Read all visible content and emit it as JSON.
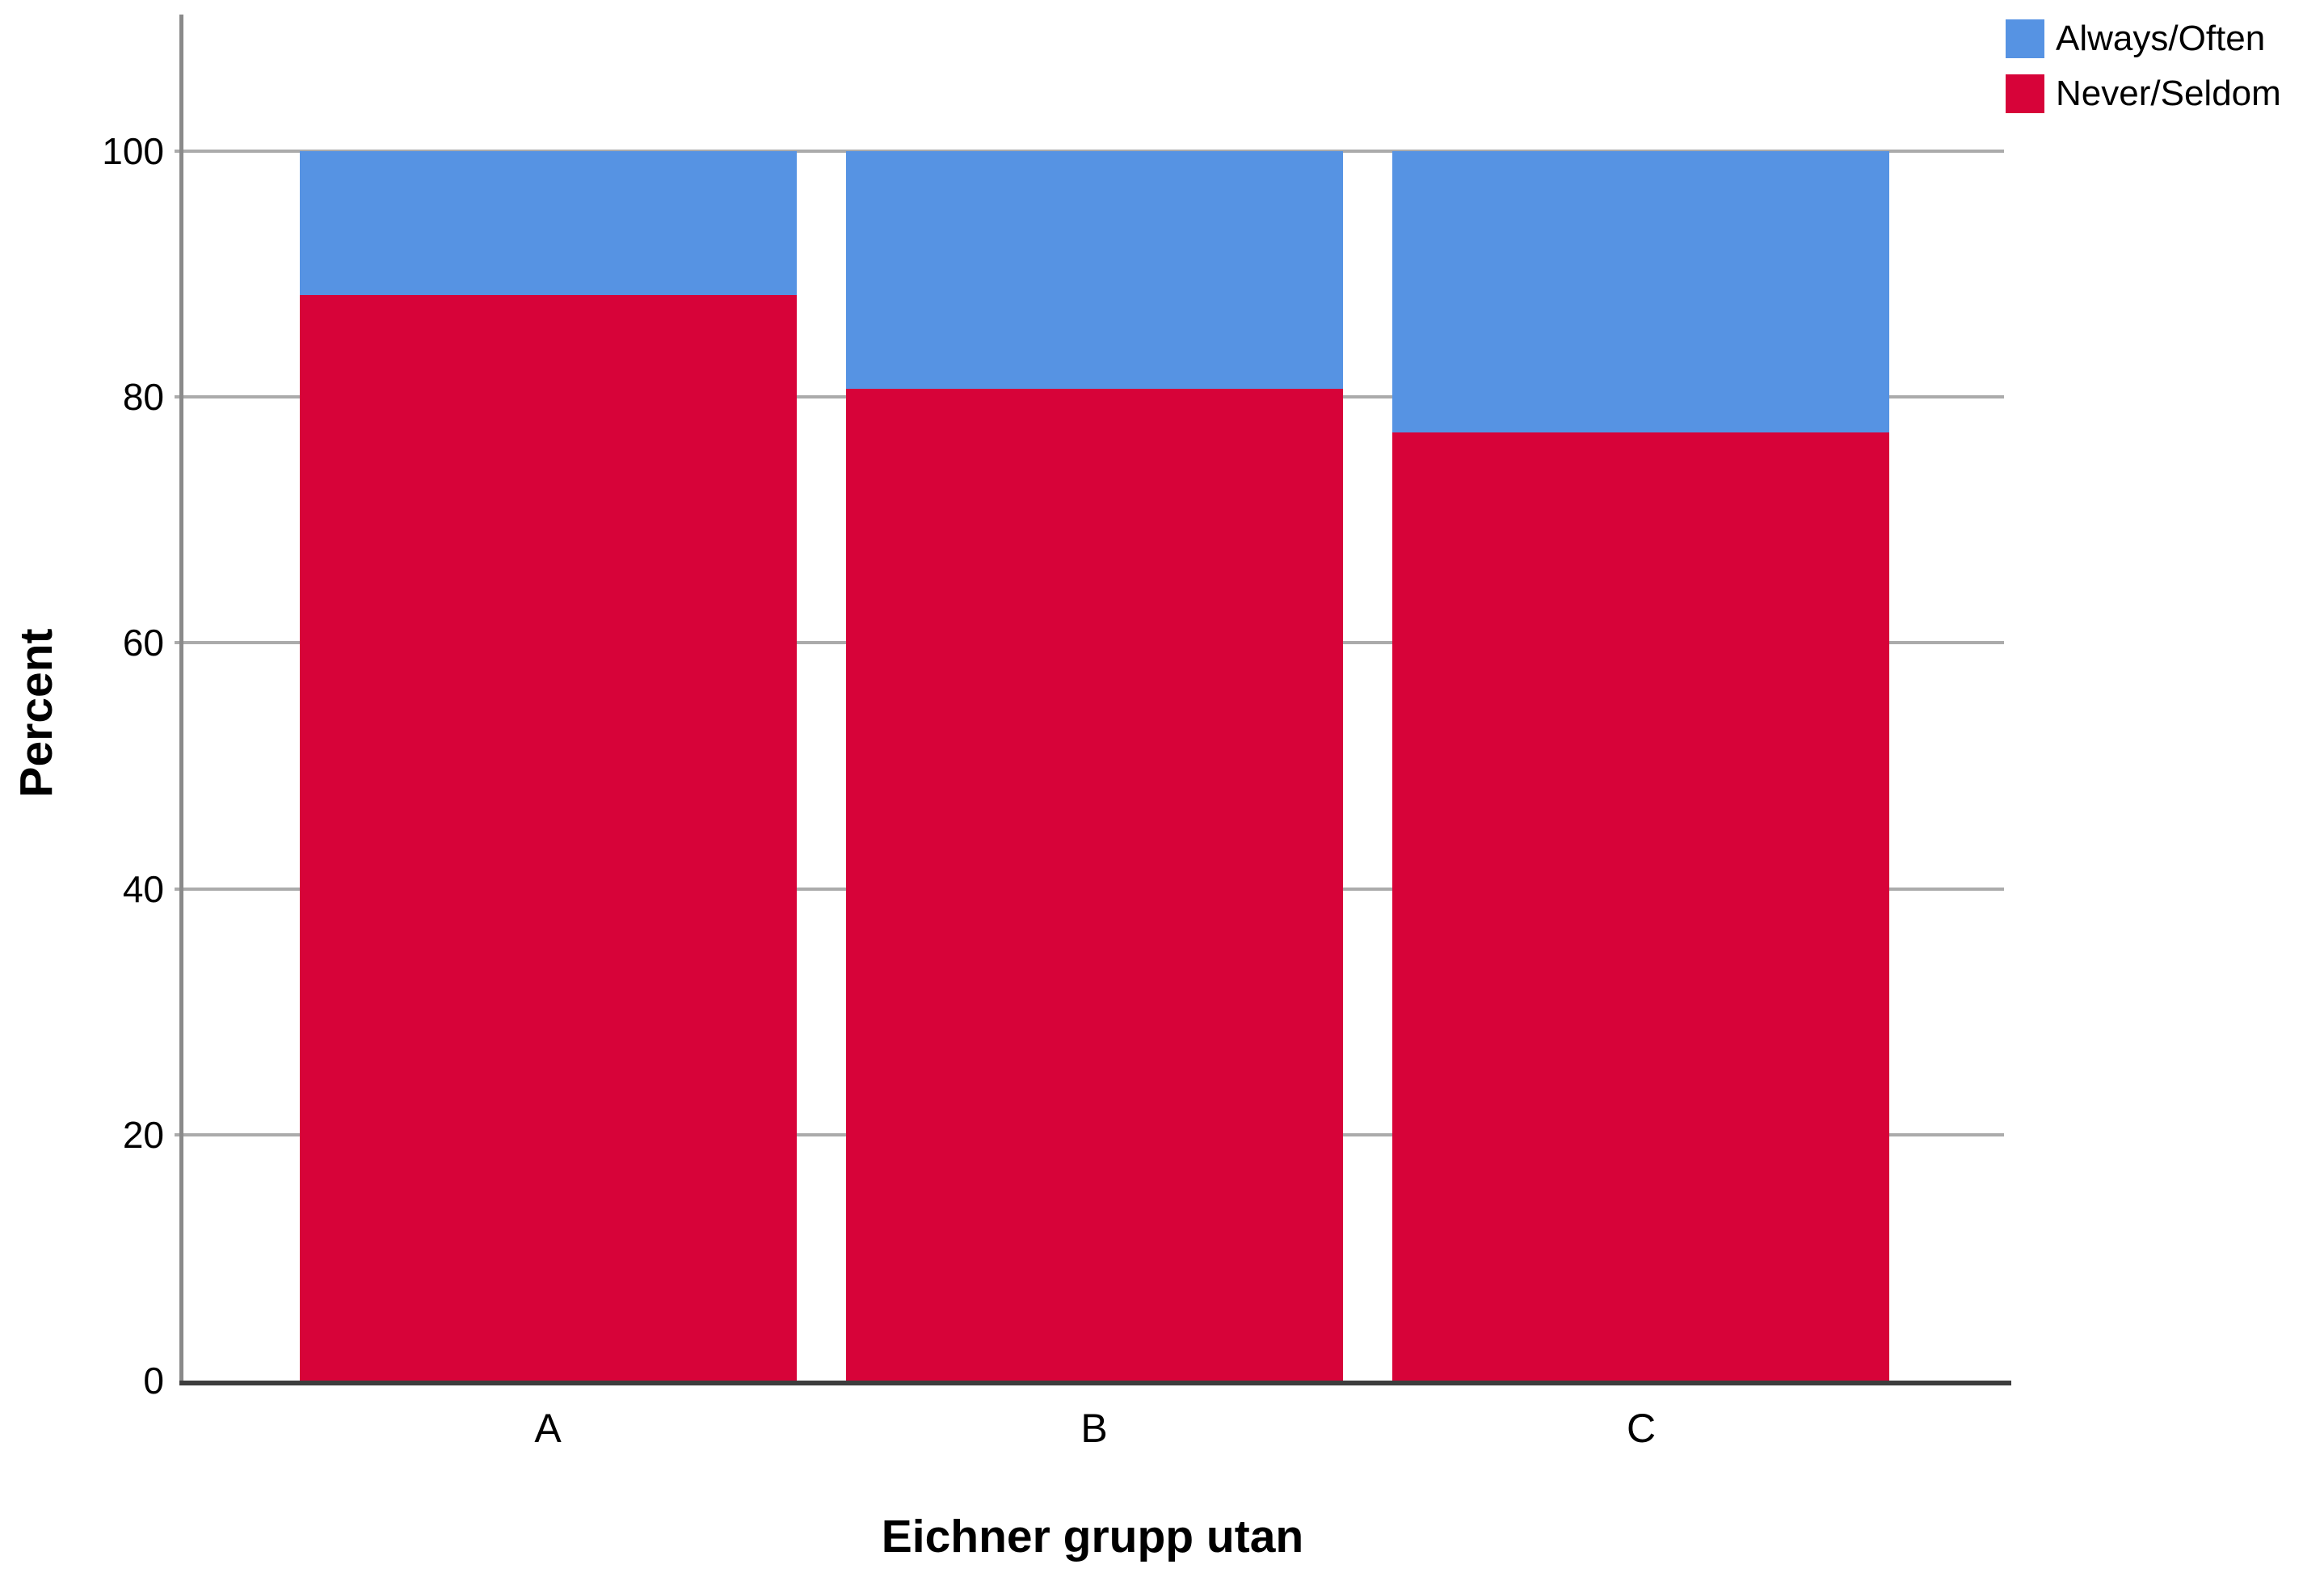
{
  "chart_data": {
    "type": "bar",
    "stacked": true,
    "categories": [
      "A",
      "B",
      "C"
    ],
    "series": [
      {
        "name": "Always/Often",
        "color": "#5693E3",
        "values": [
          11.7,
          19.3,
          22.9
        ]
      },
      {
        "name": "Never/Seldom",
        "color": "#D70339",
        "values": [
          88.3,
          80.7,
          77.1
        ]
      }
    ],
    "xlabel": "Eichner grupp utan",
    "ylabel": "Percent",
    "ylim": [
      0,
      100
    ],
    "yticks": [
      0,
      20,
      40,
      60,
      80,
      100
    ],
    "grid": true,
    "legend_position": "top-right",
    "value_unit": "percent"
  },
  "colors": {
    "gridline": "#ababab",
    "y_axis": "#8a8a8a",
    "x_axis": "#3d3d3d",
    "background": "#ffffff",
    "text": "#000000"
  }
}
